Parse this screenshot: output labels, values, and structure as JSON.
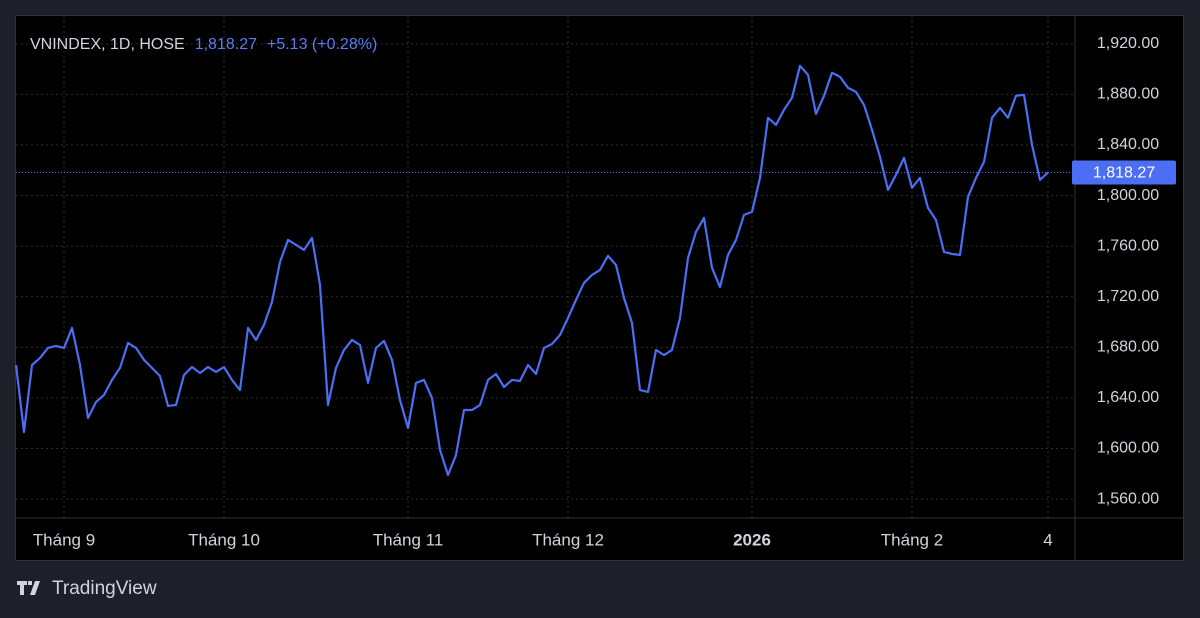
{
  "chart_data": {
    "type": "line",
    "title": "VNINDEX, 1D, HOSE",
    "last_price": {
      "value": 1818.27,
      "label": "1,818.27"
    },
    "change": "+5.13 (+0.28%)",
    "color": "#4c6ef5",
    "categories": [
      null,
      null,
      null,
      null,
      null,
      null,
      "Tháng 9",
      null,
      null,
      null,
      null,
      null,
      null,
      null,
      null,
      null,
      null,
      null,
      null,
      null,
      null,
      null,
      null,
      null,
      null,
      null,
      "Tháng 10",
      null,
      null,
      null,
      null,
      null,
      null,
      null,
      null,
      null,
      null,
      null,
      null,
      null,
      null,
      null,
      null,
      null,
      null,
      null,
      null,
      null,
      null,
      "Tháng 11",
      null,
      null,
      null,
      null,
      null,
      null,
      null,
      null,
      null,
      null,
      null,
      null,
      null,
      null,
      null,
      null,
      null,
      null,
      null,
      "Tháng 12",
      null,
      null,
      null,
      null,
      null,
      null,
      null,
      null,
      null,
      null,
      null,
      null,
      null,
      null,
      null,
      null,
      null,
      null,
      null,
      null,
      null,
      null,
      "2026",
      null,
      null,
      null,
      null,
      null,
      null,
      null,
      null,
      null,
      null,
      null,
      null,
      null,
      null,
      null,
      null,
      null,
      null,
      null,
      "Tháng 2",
      null,
      null,
      null,
      null,
      null,
      null,
      null,
      null,
      null,
      null,
      null,
      null,
      null,
      null,
      null,
      null,
      "4"
    ],
    "values": [
      1666.0,
      1613.0,
      1666.0,
      1671.6,
      1679.5,
      1681.1,
      1679.5,
      1695.3,
      1666.0,
      1624.1,
      1636.7,
      1642.3,
      1654.2,
      1663.7,
      1683.4,
      1679.5,
      1670.0,
      1663.7,
      1657.3,
      1633.6,
      1634.4,
      1658.1,
      1664.4,
      1659.7,
      1664.4,
      1660.5,
      1664.4,
      1654.2,
      1646.2,
      1695.3,
      1685.8,
      1697.7,
      1715.9,
      1747.5,
      1764.9,
      1761.0,
      1757.0,
      1766.5,
      1729.3,
      1634.4,
      1663.7,
      1677.9,
      1685.8,
      1681.8,
      1651.8,
      1679.5,
      1685.0,
      1670.0,
      1638.3,
      1616.2,
      1651.8,
      1654.2,
      1639.9,
      1598.8,
      1579.0,
      1594.8,
      1630.4,
      1630.4,
      1634.4,
      1654.2,
      1658.9,
      1648.6,
      1654.2,
      1653.4,
      1666.0,
      1658.9,
      1679.5,
      1682.6,
      1689.8,
      1703.2,
      1717.5,
      1730.9,
      1737.2,
      1741.2,
      1752.3,
      1745.1,
      1719.0,
      1699.3,
      1646.2,
      1644.7,
      1677.9,
      1673.9,
      1677.9,
      1703.2,
      1750.7,
      1771.3,
      1782.3,
      1742.8,
      1727.7,
      1753.1,
      1764.9,
      1784.7,
      1787.1,
      1814.0,
      1861.5,
      1855.9,
      1867.8,
      1877.3,
      1902.6,
      1895.5,
      1864.6,
      1878.9,
      1897.1,
      1893.9,
      1885.2,
      1882.0,
      1871.7,
      1852.0,
      1830.6,
      1804.5,
      1816.4,
      1829.8,
      1806.1,
      1814.0,
      1790.2,
      1780.7,
      1755.4,
      1753.8,
      1753.1,
      1798.9,
      1814.0,
      1826.6,
      1861.5,
      1869.4,
      1861.5,
      1878.9,
      1879.6,
      1840.1,
      1812.4,
      1818.27
    ],
    "ylim": [
      1545,
      1942
    ],
    "yticks": [
      {
        "value": 1560,
        "label": "1,560.00"
      },
      {
        "value": 1600,
        "label": "1,600.00"
      },
      {
        "value": 1640,
        "label": "1,640.00"
      },
      {
        "value": 1680,
        "label": "1,680.00"
      },
      {
        "value": 1720,
        "label": "1,720.00"
      },
      {
        "value": 1760,
        "label": "1,760.00"
      },
      {
        "value": 1800,
        "label": "1,800.00"
      },
      {
        "value": 1840,
        "label": "1,840.00"
      },
      {
        "value": 1880,
        "label": "1,880.00"
      },
      {
        "value": 1920,
        "label": "1,920.00"
      }
    ],
    "grid": true
  },
  "branding": "TradingView"
}
